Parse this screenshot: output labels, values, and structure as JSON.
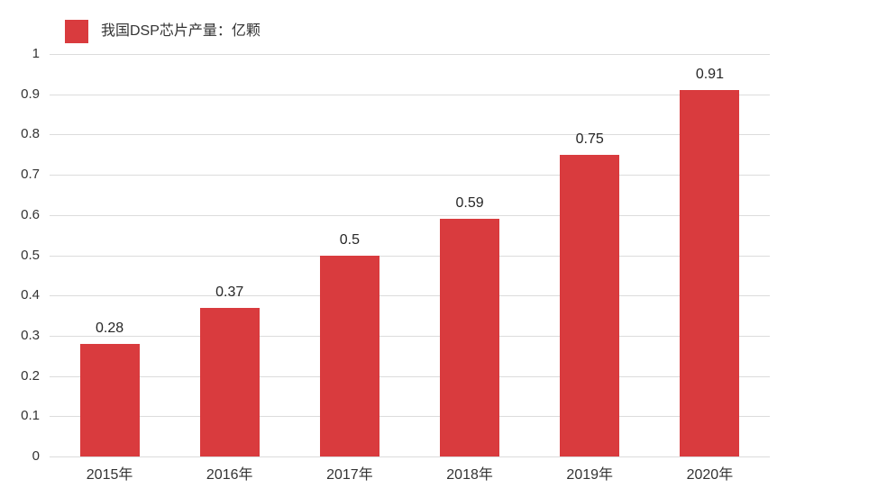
{
  "legend": {
    "label": "我国DSP芯片产量：亿颗"
  },
  "colors": {
    "bar": "#d93b3e",
    "grid": "#dcdcdc",
    "axis_text": "#333333",
    "value_text": "#262626",
    "background": "#ffffff"
  },
  "chart_data": {
    "type": "bar",
    "title": "",
    "series_name": "我国DSP芯片产量：亿颗",
    "categories": [
      "2015年",
      "2016年",
      "2017年",
      "2018年",
      "2019年",
      "2020年"
    ],
    "values": [
      0.28,
      0.37,
      0.5,
      0.59,
      0.75,
      0.91
    ],
    "value_labels": [
      "0.28",
      "0.37",
      "0.5",
      "0.59",
      "0.75",
      "0.91"
    ],
    "xlabel": "",
    "ylabel": "",
    "ylim": [
      0,
      1
    ],
    "yticks": [
      "0",
      "0.1",
      "0.2",
      "0.3",
      "0.4",
      "0.5",
      "0.6",
      "0.7",
      "0.8",
      "0.9",
      "1"
    ],
    "grid": true,
    "legend_position": "top-left",
    "bar_color": "#d93b3e"
  }
}
